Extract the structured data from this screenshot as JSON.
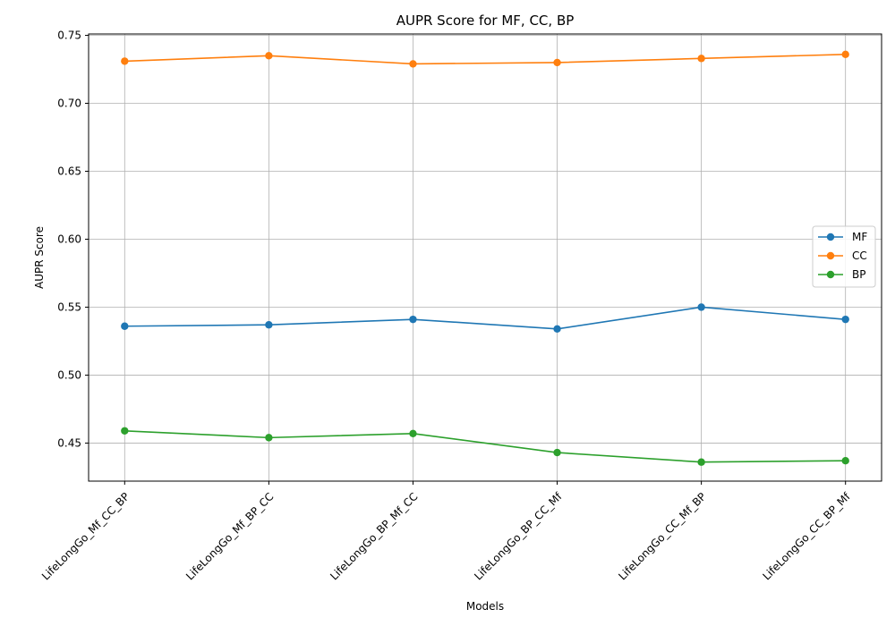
{
  "chart_data": {
    "type": "line",
    "title": "AUPR Score for MF, CC, BP",
    "xlabel": "Models",
    "ylabel": "AUPR Score",
    "categories": [
      "LifeLongGo_Mf_CC_BP",
      "LifeLongGo_Mf_BP_CC",
      "LifeLongGo_BP_Mf_CC",
      "LifeLongGo_BP_CC_Mf",
      "LifeLongGo_CC_Mf_BP",
      "LifeLongGo_CC_BP_Mf"
    ],
    "ylim": [
      0.422,
      0.751
    ],
    "yticks": [
      "0.45",
      "0.50",
      "0.55",
      "0.60",
      "0.65",
      "0.70",
      "0.75"
    ],
    "grid": true,
    "legend_position": "center-right",
    "series": [
      {
        "name": "MF",
        "color": "#1f77b4",
        "values": [
          0.536,
          0.537,
          0.541,
          0.534,
          0.55,
          0.541
        ]
      },
      {
        "name": "CC",
        "color": "#ff7f0e",
        "values": [
          0.731,
          0.735,
          0.729,
          0.73,
          0.733,
          0.736
        ]
      },
      {
        "name": "BP",
        "color": "#2ca02c",
        "values": [
          0.459,
          0.454,
          0.457,
          0.443,
          0.436,
          0.437
        ]
      }
    ]
  }
}
